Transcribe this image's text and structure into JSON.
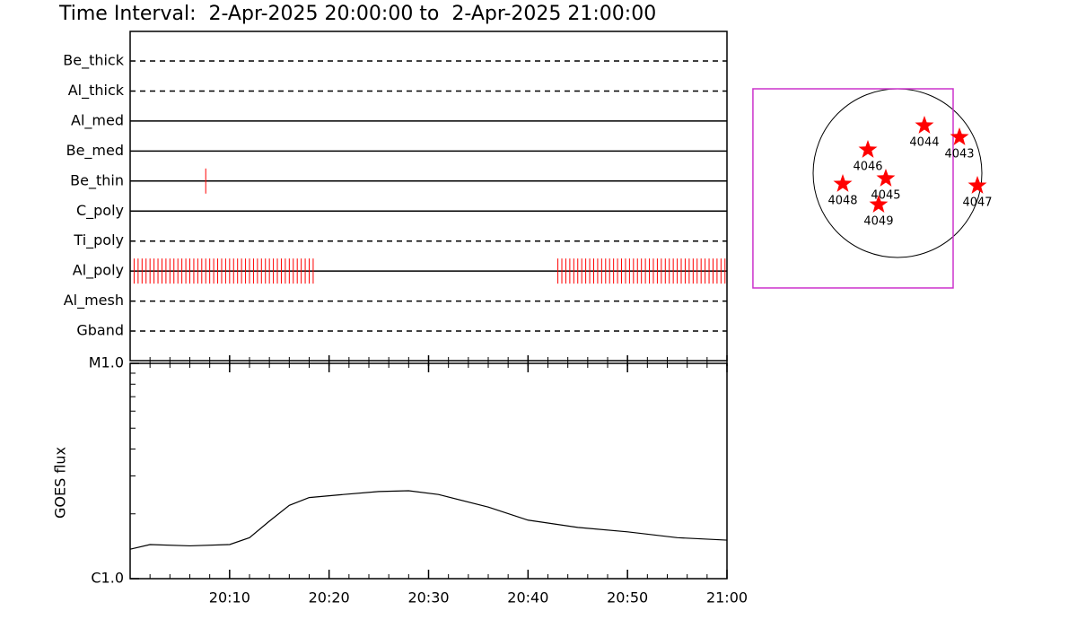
{
  "chart_data": [
    {
      "type": "timeline",
      "title": "Time Interval:  2-Apr-2025 20:00:00 to  2-Apr-2025 21:00:00",
      "xlim": [
        0,
        60
      ],
      "exposure_color": "#ff0000",
      "rows": [
        {
          "name": "Be_thick",
          "style": "dashed",
          "exposures": []
        },
        {
          "name": "Al_thick",
          "style": "dashed",
          "exposures": []
        },
        {
          "name": "Al_med",
          "style": "solid",
          "exposures": []
        },
        {
          "name": "Be_med",
          "style": "solid",
          "exposures": []
        },
        {
          "name": "Be_thin",
          "style": "solid",
          "exposures": [
            7.6
          ]
        },
        {
          "name": "C_poly",
          "style": "solid",
          "exposures": []
        },
        {
          "name": "Ti_poly",
          "style": "dashed",
          "exposures": []
        },
        {
          "name": "Al_poly",
          "style": "solid",
          "exposures": [
            0.4,
            0.8,
            1.2,
            1.6,
            2,
            2.4,
            2.8,
            3.2,
            3.6,
            4,
            4.4,
            4.8,
            5.2,
            5.6,
            6,
            6.4,
            6.8,
            7.2,
            7.6,
            8,
            8.4,
            8.8,
            9.2,
            9.6,
            10,
            10.4,
            10.8,
            11.2,
            11.6,
            12,
            12.4,
            12.8,
            13.2,
            13.6,
            14,
            14.4,
            14.8,
            15.2,
            15.6,
            16,
            16.4,
            16.8,
            17.2,
            17.6,
            18,
            18.4,
            43,
            43.4,
            43.8,
            44.2,
            44.6,
            45,
            45.4,
            45.8,
            46.2,
            46.6,
            47,
            47.4,
            47.8,
            48.2,
            48.6,
            49,
            49.4,
            49.8,
            50.2,
            50.6,
            51,
            51.4,
            51.8,
            52.2,
            52.6,
            53,
            53.4,
            53.8,
            54.2,
            54.6,
            55,
            55.4,
            55.8,
            56.2,
            56.6,
            57,
            57.4,
            57.8,
            58.2,
            58.6,
            59,
            59.4,
            59.8
          ]
        },
        {
          "name": "Al_mesh",
          "style": "dashed",
          "exposures": []
        },
        {
          "name": "Gband",
          "style": "dashed",
          "exposures": []
        }
      ]
    },
    {
      "type": "line",
      "y_label": "GOES flux",
      "log_y": true,
      "xlim": [
        0,
        60
      ],
      "xticks": [
        {
          "value": 10,
          "label": "20:10"
        },
        {
          "value": 20,
          "label": "20:20"
        },
        {
          "value": 30,
          "label": "20:30"
        },
        {
          "value": 40,
          "label": "20:40"
        },
        {
          "value": 50,
          "label": "20:50"
        },
        {
          "value": 60,
          "label": "21:00"
        }
      ],
      "xminor": [
        2,
        4,
        6,
        8,
        12,
        14,
        16,
        18,
        22,
        24,
        26,
        28,
        32,
        34,
        36,
        38,
        42,
        44,
        46,
        48,
        52,
        54,
        56,
        58
      ],
      "ylim": [
        1e-06,
        1e-05
      ],
      "yticks": [
        {
          "value": 1e-06,
          "label": "C1.0"
        },
        {
          "value": 1e-05,
          "label": "M1.0"
        }
      ],
      "yminor": [
        2e-06,
        3e-06,
        4e-06,
        5e-06,
        6e-06,
        7e-06,
        8e-06,
        9e-06
      ],
      "color": "#000000",
      "x": [
        0,
        2,
        6,
        10,
        12,
        14,
        16,
        18,
        21,
        25,
        28,
        31,
        36,
        40,
        45,
        50,
        55,
        60
      ],
      "values": [
        1.37e-06,
        1.44e-06,
        1.42e-06,
        1.44e-06,
        1.55e-06,
        1.85e-06,
        2.19e-06,
        2.38e-06,
        2.45e-06,
        2.54e-06,
        2.56e-06,
        2.46e-06,
        2.15e-06,
        1.87e-06,
        1.73e-06,
        1.65e-06,
        1.55e-06,
        1.51e-06
      ]
    },
    {
      "type": "scatter",
      "color": "#ff0000",
      "disk_radius": 960,
      "fov_x": [
        -1645,
        633
      ],
      "fov_y": [
        -1307,
        960
      ],
      "fov_color": "#cc33cc",
      "points": [
        {
          "label": "4044",
          "x": 306,
          "y": 541
        },
        {
          "label": "4043",
          "x": 705,
          "y": 409
        },
        {
          "label": "4046",
          "x": -337,
          "y": 266
        },
        {
          "label": "4045",
          "x": -133,
          "y": -61
        },
        {
          "label": "4048",
          "x": -623,
          "y": -123
        },
        {
          "label": "4049",
          "x": -215,
          "y": -358
        },
        {
          "label": "4047",
          "x": 909,
          "y": -143
        }
      ]
    }
  ]
}
